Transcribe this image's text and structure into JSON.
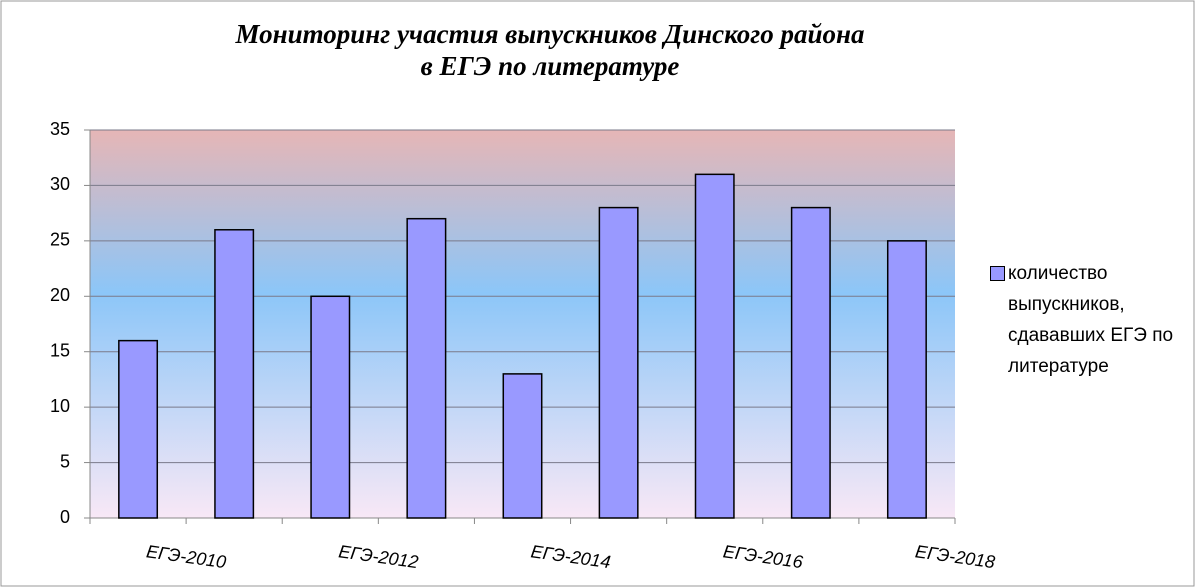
{
  "chart_data": {
    "type": "bar",
    "title": "Мониторинг  участия выпускников Динского района\nв ЕГЭ по литературе",
    "categories": [
      "ЕГЭ-2010",
      null,
      "ЕГЭ-2012",
      null,
      "ЕГЭ-2014",
      null,
      "ЕГЭ-2016",
      null,
      "ЕГЭ-2018"
    ],
    "series": [
      {
        "name": "количество выпускников, сдававших ЕГЭ по литературе",
        "color": "#9999ff",
        "values": [
          16,
          26,
          20,
          27,
          13,
          28,
          31,
          28,
          25
        ]
      }
    ],
    "ylim": [
      0,
      35
    ],
    "yticks": [
      0,
      5,
      10,
      15,
      20,
      25,
      30,
      35
    ],
    "grid": true,
    "legend": "right"
  }
}
